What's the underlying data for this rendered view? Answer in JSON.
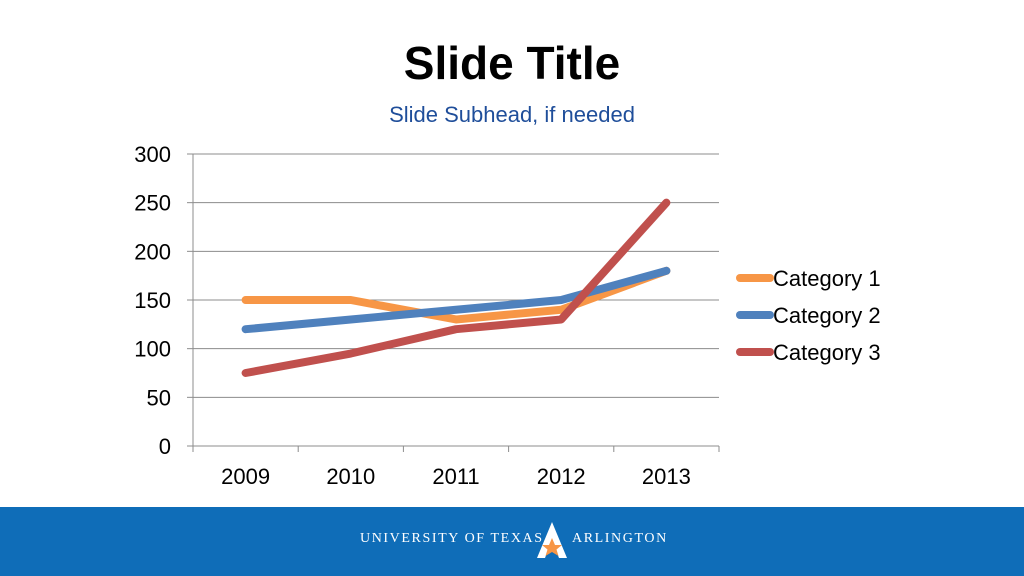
{
  "slide": {
    "title": "Slide Title",
    "subhead": "Slide Subhead, if needed"
  },
  "footer": {
    "org_left": "UNIVERSITY OF TEXAS",
    "org_right": "ARLINGTON",
    "logo_icon": "uta-star-logo-icon",
    "background_color": "#0f6db8"
  },
  "chart_data": {
    "type": "line",
    "categories": [
      "2009",
      "2010",
      "2011",
      "2012",
      "2013"
    ],
    "ylim": [
      0,
      300
    ],
    "yticks": [
      "0",
      "50",
      "100",
      "150",
      "200",
      "250",
      "300"
    ],
    "grid": true,
    "legend_position": "right",
    "series": [
      {
        "name": "Category 1",
        "color": "#f79646",
        "values": [
          150,
          150,
          130,
          140,
          180
        ]
      },
      {
        "name": "Category 2",
        "color": "#4f81bd",
        "values": [
          120,
          130,
          140,
          150,
          180
        ]
      },
      {
        "name": "Category 3",
        "color": "#c0504d",
        "values": [
          75,
          95,
          120,
          130,
          250
        ]
      }
    ]
  }
}
